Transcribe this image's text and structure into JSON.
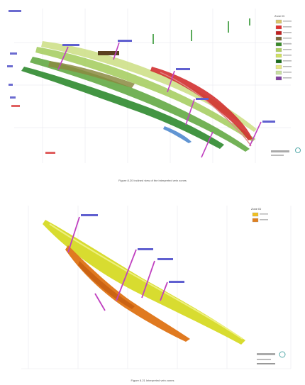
{
  "figure_top": {
    "legend_title": "Zone ID",
    "legend_colors": [
      "#d8c46a",
      "#e03030",
      "#c02020",
      "#7a6a3a",
      "#3a8a2a",
      "#b0d060",
      "#d0e060",
      "#1a6a1a",
      "#e8e880",
      "#c8e0a0",
      "#8040a0"
    ],
    "caption": "Figure 8.20 Inclined view of the interpreted vein zones"
  },
  "figure_bottom": {
    "legend_title": "Zone ID",
    "legend_colors": [
      "#f0c020",
      "#e08020"
    ],
    "caption": "Figure 8.21 Interpreted vein zones"
  },
  "colors": {
    "drillhole": "#c040c0",
    "label": "#6060d0",
    "green_zone": "#3c9a3c",
    "red_zone": "#d03030",
    "yellow_zone": "#d8dc30",
    "orange_zone": "#e07a20"
  }
}
